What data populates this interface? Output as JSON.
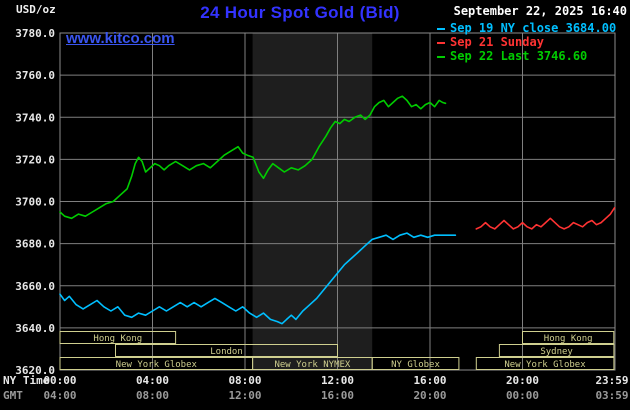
{
  "chart": {
    "unit_label": "USD/oz",
    "title": "24 Hour Spot Gold (Bid)",
    "datetime": "September 22, 2025 16:40",
    "watermark": "www.kitco.com",
    "x_axis_rows": [
      {
        "name": "NY Time",
        "labels": [
          "00:00",
          "04:00",
          "08:00",
          "12:00",
          "16:00",
          "20:00",
          "23:59"
        ]
      },
      {
        "name": "GMT",
        "labels": [
          "04:00",
          "08:00",
          "12:00",
          "16:00",
          "20:00",
          "00:00",
          "03:59"
        ]
      }
    ]
  },
  "legend": [
    {
      "label": "Sep 19 NY close 3684.00",
      "color": "#00bfff"
    },
    {
      "label": "Sep 21 Sunday",
      "color": "#ff3333"
    },
    {
      "label": "Sep 22 Last 3746.60",
      "color": "#00cc00"
    }
  ],
  "colors": {
    "background": "#000000",
    "band": "#1e1e1e",
    "grid": "#7f7f7f",
    "border": "#8c8c8c",
    "axis_text": "#e8e8e8",
    "axis_text_secondary": "#9a9a9a",
    "session": "#cfcf8f",
    "title": "#3333ff",
    "watermark": "#3a55f0",
    "datetime_text": "#ffffff",
    "unit_text": "#f0f0f0"
  },
  "chart_data": {
    "type": "line",
    "title": "24 Hour Spot Gold (Bid)",
    "xlabel": "NY Time (hours)",
    "ylabel": "USD/oz",
    "ylim": [
      3620,
      3780
    ],
    "y_ticks": [
      3620,
      3640,
      3660,
      3680,
      3700,
      3720,
      3740,
      3760,
      3780
    ],
    "x_tick_hours": [
      0,
      4,
      8,
      12,
      16,
      20,
      24
    ],
    "grid": true,
    "legend_position": "top-right",
    "highlight_band_hours": [
      8.33,
      13.5
    ],
    "series": [
      {
        "name": "Sep 19 NY close 3684.00",
        "color": "#00bfff",
        "points": [
          [
            0.0,
            3656
          ],
          [
            0.2,
            3653
          ],
          [
            0.4,
            3655
          ],
          [
            0.7,
            3651
          ],
          [
            1.0,
            3649
          ],
          [
            1.3,
            3651
          ],
          [
            1.6,
            3653
          ],
          [
            1.9,
            3650
          ],
          [
            2.2,
            3648
          ],
          [
            2.5,
            3650
          ],
          [
            2.8,
            3646
          ],
          [
            3.1,
            3645
          ],
          [
            3.4,
            3647
          ],
          [
            3.7,
            3646
          ],
          [
            4.0,
            3648
          ],
          [
            4.3,
            3650
          ],
          [
            4.6,
            3648
          ],
          [
            4.9,
            3650
          ],
          [
            5.2,
            3652
          ],
          [
            5.5,
            3650
          ],
          [
            5.8,
            3652
          ],
          [
            6.1,
            3650
          ],
          [
            6.4,
            3652
          ],
          [
            6.7,
            3654
          ],
          [
            7.0,
            3652
          ],
          [
            7.3,
            3650
          ],
          [
            7.6,
            3648
          ],
          [
            7.9,
            3650
          ],
          [
            8.2,
            3647
          ],
          [
            8.5,
            3645
          ],
          [
            8.8,
            3647
          ],
          [
            9.1,
            3644
          ],
          [
            9.4,
            3643
          ],
          [
            9.6,
            3642
          ],
          [
            9.8,
            3644
          ],
          [
            10.0,
            3646
          ],
          [
            10.2,
            3644
          ],
          [
            10.5,
            3648
          ],
          [
            10.8,
            3651
          ],
          [
            11.1,
            3654
          ],
          [
            11.4,
            3658
          ],
          [
            11.7,
            3662
          ],
          [
            12.0,
            3666
          ],
          [
            12.3,
            3670
          ],
          [
            12.6,
            3673
          ],
          [
            12.9,
            3676
          ],
          [
            13.2,
            3679
          ],
          [
            13.5,
            3682
          ],
          [
            13.8,
            3683
          ],
          [
            14.1,
            3684
          ],
          [
            14.4,
            3682
          ],
          [
            14.7,
            3684
          ],
          [
            15.0,
            3685
          ],
          [
            15.3,
            3683
          ],
          [
            15.6,
            3684
          ],
          [
            15.9,
            3683
          ],
          [
            16.2,
            3684
          ],
          [
            16.5,
            3684
          ],
          [
            16.8,
            3684
          ],
          [
            17.1,
            3684
          ]
        ]
      },
      {
        "name": "Sep 21 Sunday",
        "color": "#ff3333",
        "points": [
          [
            18.0,
            3687
          ],
          [
            18.2,
            3688
          ],
          [
            18.4,
            3690
          ],
          [
            18.6,
            3688
          ],
          [
            18.8,
            3687
          ],
          [
            19.0,
            3689
          ],
          [
            19.2,
            3691
          ],
          [
            19.4,
            3689
          ],
          [
            19.6,
            3687
          ],
          [
            19.8,
            3688
          ],
          [
            20.0,
            3690
          ],
          [
            20.2,
            3688
          ],
          [
            20.4,
            3687
          ],
          [
            20.6,
            3689
          ],
          [
            20.8,
            3688
          ],
          [
            21.0,
            3690
          ],
          [
            21.2,
            3692
          ],
          [
            21.4,
            3690
          ],
          [
            21.6,
            3688
          ],
          [
            21.8,
            3687
          ],
          [
            22.0,
            3688
          ],
          [
            22.2,
            3690
          ],
          [
            22.4,
            3689
          ],
          [
            22.6,
            3688
          ],
          [
            22.8,
            3690
          ],
          [
            23.0,
            3691
          ],
          [
            23.2,
            3689
          ],
          [
            23.4,
            3690
          ],
          [
            23.6,
            3692
          ],
          [
            23.8,
            3694
          ],
          [
            23.98,
            3697
          ]
        ]
      },
      {
        "name": "Sep 22 Last 3746.60",
        "color": "#00cc00",
        "points": [
          [
            0.0,
            3695
          ],
          [
            0.2,
            3693
          ],
          [
            0.5,
            3692
          ],
          [
            0.8,
            3694
          ],
          [
            1.1,
            3693
          ],
          [
            1.4,
            3695
          ],
          [
            1.7,
            3697
          ],
          [
            2.0,
            3699
          ],
          [
            2.3,
            3700
          ],
          [
            2.6,
            3703
          ],
          [
            2.9,
            3706
          ],
          [
            3.1,
            3712
          ],
          [
            3.25,
            3718
          ],
          [
            3.4,
            3721
          ],
          [
            3.55,
            3719
          ],
          [
            3.7,
            3714
          ],
          [
            3.9,
            3716
          ],
          [
            4.1,
            3718
          ],
          [
            4.3,
            3717
          ],
          [
            4.5,
            3715
          ],
          [
            4.7,
            3717
          ],
          [
            5.0,
            3719
          ],
          [
            5.3,
            3717
          ],
          [
            5.6,
            3715
          ],
          [
            5.9,
            3717
          ],
          [
            6.2,
            3718
          ],
          [
            6.5,
            3716
          ],
          [
            6.8,
            3719
          ],
          [
            7.1,
            3722
          ],
          [
            7.4,
            3724
          ],
          [
            7.7,
            3726
          ],
          [
            7.9,
            3723
          ],
          [
            8.1,
            3722
          ],
          [
            8.35,
            3721
          ],
          [
            8.6,
            3714
          ],
          [
            8.8,
            3711
          ],
          [
            9.0,
            3715
          ],
          [
            9.2,
            3718
          ],
          [
            9.45,
            3716
          ],
          [
            9.7,
            3714
          ],
          [
            10.0,
            3716
          ],
          [
            10.3,
            3715
          ],
          [
            10.6,
            3717
          ],
          [
            10.9,
            3720
          ],
          [
            11.2,
            3726
          ],
          [
            11.5,
            3731
          ],
          [
            11.7,
            3735
          ],
          [
            11.9,
            3738
          ],
          [
            12.1,
            3737
          ],
          [
            12.3,
            3739
          ],
          [
            12.5,
            3738
          ],
          [
            12.75,
            3740
          ],
          [
            13.0,
            3741
          ],
          [
            13.2,
            3739
          ],
          [
            13.4,
            3741
          ],
          [
            13.6,
            3745
          ],
          [
            13.8,
            3747
          ],
          [
            14.0,
            3748
          ],
          [
            14.2,
            3745
          ],
          [
            14.4,
            3747
          ],
          [
            14.6,
            3749
          ],
          [
            14.8,
            3750
          ],
          [
            15.0,
            3748
          ],
          [
            15.2,
            3745
          ],
          [
            15.4,
            3746
          ],
          [
            15.6,
            3744
          ],
          [
            15.8,
            3746
          ],
          [
            16.0,
            3747
          ],
          [
            16.2,
            3745
          ],
          [
            16.4,
            3748
          ],
          [
            16.55,
            3747
          ],
          [
            16.67,
            3746.6
          ]
        ]
      }
    ],
    "sessions": [
      {
        "row": 0,
        "label": "Hong Kong",
        "start": 0.0,
        "end": 5.0
      },
      {
        "row": 0,
        "label": "Hong Kong",
        "start": 20.0,
        "end": 23.95
      },
      {
        "row": 1,
        "label": "London",
        "start": 2.4,
        "end": 12.0
      },
      {
        "row": 1,
        "label": "Sydney",
        "start": 19.0,
        "end": 23.95
      },
      {
        "row": 2,
        "label": "New York Globex",
        "start": 0.0,
        "end": 8.33
      },
      {
        "row": 2,
        "label": "New York NYMEX",
        "start": 8.33,
        "end": 13.5
      },
      {
        "row": 2,
        "label": "NY Globex",
        "start": 13.5,
        "end": 17.25
      },
      {
        "row": 2,
        "label": "New York Globex",
        "start": 18.0,
        "end": 23.95
      }
    ]
  }
}
